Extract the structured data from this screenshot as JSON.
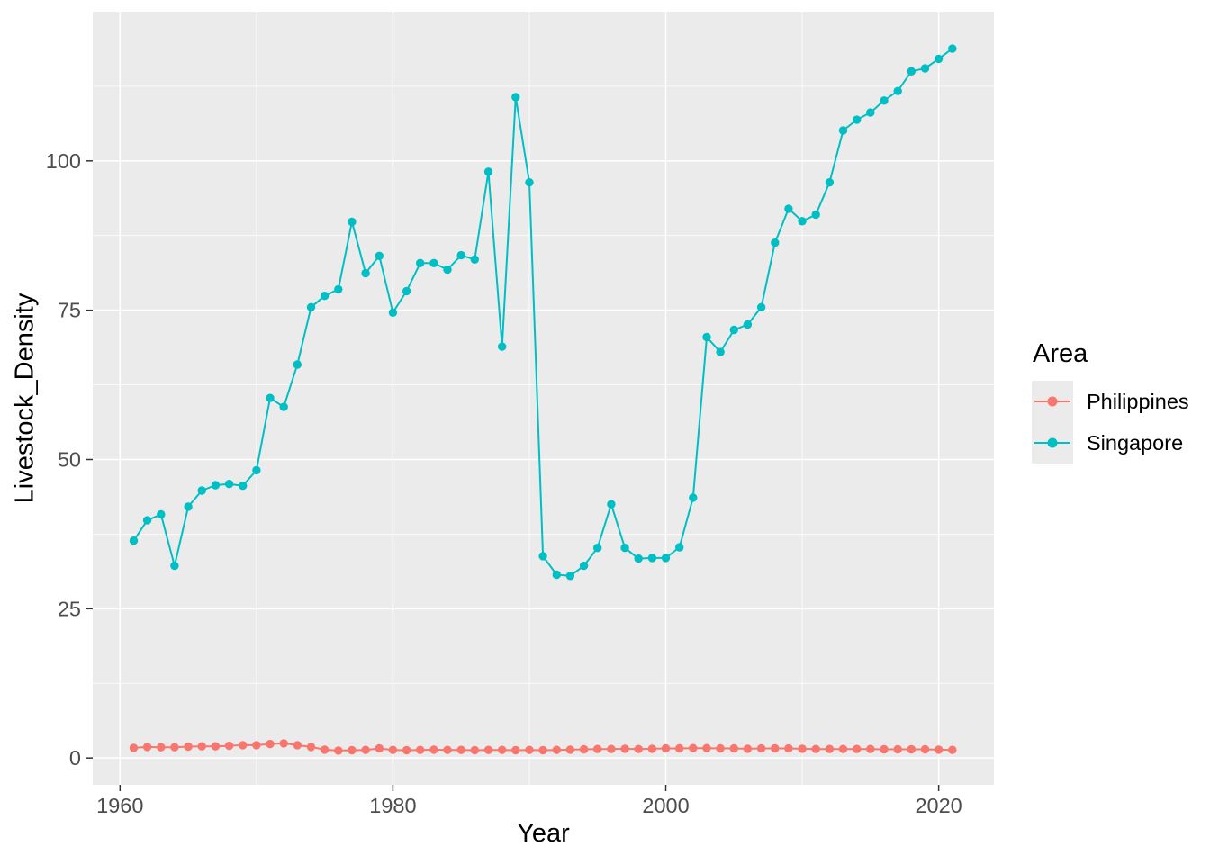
{
  "chart_data": {
    "type": "line",
    "title": "",
    "xlabel": "Year",
    "ylabel": "Livestock_Density",
    "x": [
      1961,
      1962,
      1963,
      1964,
      1965,
      1966,
      1967,
      1968,
      1969,
      1970,
      1971,
      1972,
      1973,
      1974,
      1975,
      1976,
      1977,
      1978,
      1979,
      1980,
      1981,
      1982,
      1983,
      1984,
      1985,
      1986,
      1987,
      1988,
      1989,
      1990,
      1991,
      1992,
      1993,
      1994,
      1995,
      1996,
      1997,
      1998,
      1999,
      2000,
      2001,
      2002,
      2003,
      2004,
      2005,
      2006,
      2007,
      2008,
      2009,
      2010,
      2011,
      2012,
      2013,
      2014,
      2015,
      2016,
      2017,
      2018,
      2019,
      2020,
      2021
    ],
    "series": [
      {
        "name": "Philippines",
        "color": "#F8766D",
        "values": [
          1.7,
          1.85,
          1.8,
          1.8,
          1.9,
          1.95,
          1.95,
          2.05,
          2.15,
          2.15,
          2.35,
          2.45,
          2.15,
          1.85,
          1.4,
          1.25,
          1.3,
          1.35,
          1.6,
          1.35,
          1.3,
          1.35,
          1.4,
          1.35,
          1.35,
          1.3,
          1.35,
          1.35,
          1.3,
          1.35,
          1.3,
          1.35,
          1.4,
          1.45,
          1.5,
          1.5,
          1.55,
          1.5,
          1.55,
          1.6,
          1.6,
          1.65,
          1.65,
          1.6,
          1.6,
          1.55,
          1.6,
          1.6,
          1.6,
          1.55,
          1.5,
          1.5,
          1.5,
          1.5,
          1.5,
          1.45,
          1.45,
          1.45,
          1.45,
          1.4,
          1.35
        ]
      },
      {
        "name": "Singapore",
        "color": "#00BFC4",
        "values": [
          36.4,
          39.8,
          40.8,
          32.2,
          42.1,
          44.8,
          45.7,
          45.9,
          45.6,
          48.2,
          60.3,
          58.8,
          65.9,
          75.5,
          77.4,
          78.5,
          89.8,
          81.2,
          84.1,
          74.6,
          78.2,
          82.9,
          82.9,
          81.8,
          84.2,
          83.5,
          98.2,
          68.9,
          110.7,
          96.4,
          33.8,
          30.7,
          30.5,
          32.2,
          35.2,
          42.5,
          35.2,
          33.4,
          33.5,
          33.5,
          35.3,
          43.6,
          70.5,
          68.0,
          71.7,
          72.6,
          75.5,
          86.3,
          92.0,
          89.9,
          91.0,
          96.4,
          105.1,
          106.9,
          108.1,
          110.1,
          111.7,
          115.0,
          115.5,
          117.1,
          118.8
        ]
      }
    ],
    "xticks": [
      1960,
      1980,
      2000,
      2020
    ],
    "yticks": [
      0,
      25,
      50,
      75,
      100
    ],
    "xticks_minor": [
      1970,
      1990,
      2010
    ],
    "yticks_minor": [
      12.5,
      37.5,
      62.5,
      87.5,
      112.5
    ],
    "xlim": [
      1958,
      2024.05
    ],
    "ylim": [
      -4.5,
      125
    ],
    "grid": "major and minor, white on gray panel",
    "legend_position": "right"
  },
  "legend": {
    "title": "Area",
    "entries": [
      {
        "label": "Philippines",
        "color": "#F8766D"
      },
      {
        "label": "Singapore",
        "color": "#00BFC4"
      }
    ]
  },
  "theme": {
    "panel_bg": "#EBEBEB",
    "grid_color": "#FFFFFF",
    "tick_mark_color": "#333333",
    "tick_label_color": "#4D4D4D",
    "title_color": "#000000",
    "background": "#FFFFFF"
  }
}
